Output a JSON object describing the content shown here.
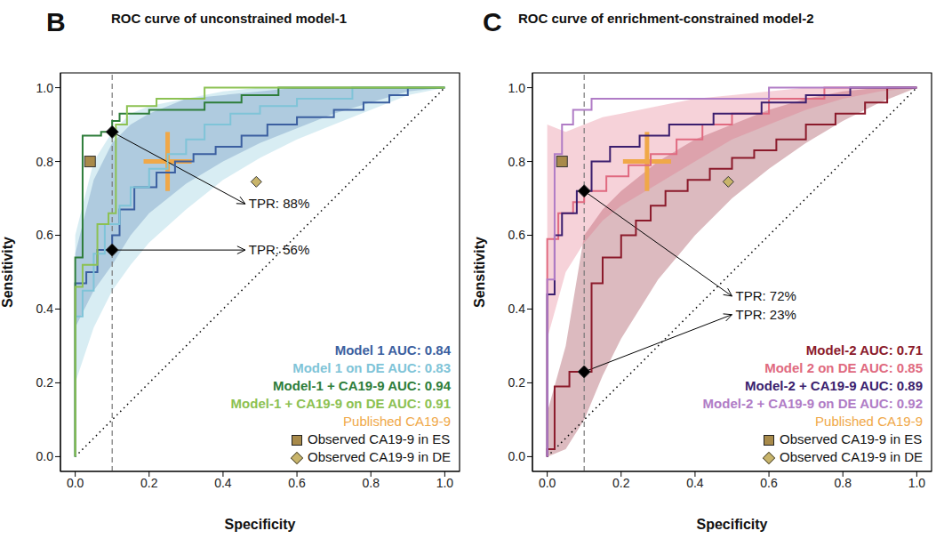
{
  "chart_data": [
    {
      "type": "line",
      "panel": "B",
      "title": "ROC curve of unconstrained model-1",
      "x_label": "Specificity",
      "y_label": "Sensitivity",
      "xlim": [
        -0.04,
        1.04
      ],
      "ylim": [
        -0.04,
        1.04
      ],
      "xticks": [
        {
          "value": 0,
          "label": "0.0"
        },
        {
          "value": 0.2,
          "label": "0.2"
        },
        {
          "value": 0.4,
          "label": "0.4"
        },
        {
          "value": 0.6,
          "label": "0.6"
        },
        {
          "value": 0.8,
          "label": "0.8"
        },
        {
          "value": 1,
          "label": "1.0"
        }
      ],
      "yticks": [
        {
          "value": 0,
          "label": "0.0"
        },
        {
          "value": 0.2,
          "label": "0.2"
        },
        {
          "value": 0.4,
          "label": "0.4"
        },
        {
          "value": 0.6,
          "label": "0.6"
        },
        {
          "value": 0.8,
          "label": "0.8"
        },
        {
          "value": 1,
          "label": "1.0"
        }
      ],
      "legend": "lower right",
      "band_x": [
        0,
        0.05,
        0.1,
        0.15,
        0.2,
        0.3,
        0.4,
        0.5,
        0.6,
        0.7,
        0.8,
        0.9,
        1.0
      ],
      "series": [
        {
          "name": "Model 1 AUC: 0.84",
          "color": "#3b5fa0",
          "x": [
            0,
            0,
            0.03,
            0.03,
            0.06,
            0.06,
            0.1,
            0.1,
            0.12,
            0.12,
            0.16,
            0.16,
            0.22,
            0.22,
            0.27,
            0.27,
            0.32,
            0.32,
            0.38,
            0.38,
            0.45,
            0.45,
            0.52,
            0.52,
            0.6,
            0.6,
            0.7,
            0.7,
            0.78,
            0.78,
            0.85,
            0.85,
            0.9,
            0.9,
            1
          ],
          "y": [
            0,
            0.47,
            0.47,
            0.5,
            0.5,
            0.56,
            0.56,
            0.6,
            0.6,
            0.67,
            0.67,
            0.73,
            0.73,
            0.77,
            0.77,
            0.8,
            0.8,
            0.82,
            0.82,
            0.84,
            0.84,
            0.87,
            0.87,
            0.9,
            0.9,
            0.92,
            0.92,
            0.94,
            0.94,
            0.96,
            0.96,
            0.98,
            0.98,
            1.0,
            1.0
          ],
          "band_lower": [
            0.35,
            0.45,
            0.52,
            0.6,
            0.66,
            0.74,
            0.8,
            0.85,
            0.89,
            0.93,
            0.96,
            0.99,
            1.0
          ],
          "band_upper": [
            0.55,
            0.75,
            0.85,
            0.9,
            0.93,
            0.97,
            0.98,
            0.99,
            1.0,
            1.0,
            1.0,
            1.0,
            1.0
          ]
        },
        {
          "name": "Model 1 on DE AUC: 0.83",
          "color": "#7fc4d8",
          "x": [
            0,
            0,
            0.02,
            0.02,
            0.05,
            0.05,
            0.08,
            0.08,
            0.12,
            0.12,
            0.15,
            0.15,
            0.2,
            0.2,
            0.25,
            0.25,
            0.3,
            0.3,
            0.35,
            0.35,
            0.42,
            0.42,
            0.5,
            0.5,
            0.6,
            0.6,
            0.75,
            0.75,
            1
          ],
          "y": [
            0,
            0.38,
            0.38,
            0.45,
            0.45,
            0.55,
            0.55,
            0.63,
            0.63,
            0.68,
            0.68,
            0.73,
            0.73,
            0.78,
            0.78,
            0.82,
            0.82,
            0.86,
            0.86,
            0.9,
            0.9,
            0.93,
            0.93,
            0.95,
            0.95,
            0.97,
            0.97,
            1.0,
            1.0
          ],
          "band_lower": [
            0.2,
            0.35,
            0.45,
            0.52,
            0.58,
            0.67,
            0.75,
            0.81,
            0.86,
            0.9,
            0.94,
            0.98,
            1.0
          ],
          "band_upper": [
            0.6,
            0.8,
            0.88,
            0.93,
            0.95,
            0.97,
            0.99,
            1.0,
            1.0,
            1.0,
            1.0,
            1.0,
            1.0
          ]
        },
        {
          "name": "Model-1 + CA19-9 AUC: 0.94",
          "color": "#2e7d3a",
          "x": [
            0,
            0,
            0.02,
            0.02,
            0.07,
            0.07,
            0.1,
            0.1,
            0.12,
            0.12,
            0.2,
            0.2,
            0.35,
            0.35,
            0.45,
            0.45,
            0.55,
            0.55,
            1
          ],
          "y": [
            0,
            0.54,
            0.54,
            0.87,
            0.87,
            0.88,
            0.88,
            0.91,
            0.91,
            0.93,
            0.93,
            0.94,
            0.94,
            0.96,
            0.96,
            0.98,
            0.98,
            1.0,
            1.0
          ]
        },
        {
          "name": "Model-1 + CA19-9 on DE AUC: 0.91",
          "color": "#8cc152",
          "x": [
            0,
            0,
            0.02,
            0.02,
            0.06,
            0.06,
            0.09,
            0.09,
            0.11,
            0.11,
            0.14,
            0.14,
            0.22,
            0.22,
            0.35,
            0.35,
            1
          ],
          "y": [
            0,
            0.46,
            0.46,
            0.52,
            0.52,
            0.63,
            0.63,
            0.66,
            0.66,
            0.9,
            0.9,
            0.95,
            0.95,
            0.97,
            0.97,
            1.0,
            1.0
          ]
        }
      ],
      "published": {
        "name": "Published CA19-9",
        "color": "#f0a848",
        "marker": "cross",
        "x": 0.25,
        "y": 0.8,
        "x_error": 0.065,
        "y_error": 0.08
      },
      "points": [
        {
          "name": "Observed CA19-9 in ES",
          "color": "#a88a4a",
          "marker": "square",
          "x": 0.04,
          "y": 0.8
        },
        {
          "name": "Observed CA19-9 in DE",
          "color": "#c8b46a",
          "marker": "diamond",
          "x": 0.49,
          "y": 0.745
        }
      ],
      "annotations": [
        {
          "text": "TPR: 88%",
          "x": 0.1,
          "y": 0.88,
          "label_at": [
            0.46,
            0.685
          ]
        },
        {
          "text": "TPR: 56%",
          "x": 0.1,
          "y": 0.56,
          "label_at": [
            0.46,
            0.56
          ]
        }
      ],
      "threshold": {
        "x": 0.1,
        "line_style": "dashed"
      },
      "diagonal": {
        "x": [
          0,
          1
        ],
        "y": [
          0,
          1
        ],
        "line_style": "dotted"
      }
    },
    {
      "type": "line",
      "panel": "C",
      "title": "ROC curve of enrichment-constrained model-2",
      "x_label": "Specificity",
      "y_label": "Sensitivity",
      "xlim": [
        -0.04,
        1.04
      ],
      "ylim": [
        -0.04,
        1.04
      ],
      "xticks": [
        {
          "value": 0,
          "label": "0.0"
        },
        {
          "value": 0.2,
          "label": "0.2"
        },
        {
          "value": 0.4,
          "label": "0.4"
        },
        {
          "value": 0.6,
          "label": "0.6"
        },
        {
          "value": 0.8,
          "label": "0.8"
        },
        {
          "value": 1,
          "label": "1.0"
        }
      ],
      "yticks": [
        {
          "value": 0,
          "label": "0.0"
        },
        {
          "value": 0.2,
          "label": "0.2"
        },
        {
          "value": 0.4,
          "label": "0.4"
        },
        {
          "value": 0.6,
          "label": "0.6"
        },
        {
          "value": 0.8,
          "label": "0.8"
        },
        {
          "value": 1,
          "label": "1.0"
        }
      ],
      "legend": "lower right",
      "band_x": [
        0,
        0.05,
        0.1,
        0.15,
        0.2,
        0.3,
        0.4,
        0.5,
        0.6,
        0.7,
        0.8,
        0.9,
        1.0
      ],
      "series": [
        {
          "name": "Model-2 AUC: 0.71",
          "color": "#8b1a2b",
          "x": [
            0,
            0,
            0.02,
            0.02,
            0.06,
            0.06,
            0.12,
            0.12,
            0.15,
            0.15,
            0.2,
            0.2,
            0.24,
            0.24,
            0.28,
            0.28,
            0.32,
            0.32,
            0.38,
            0.38,
            0.44,
            0.44,
            0.5,
            0.5,
            0.56,
            0.56,
            0.62,
            0.62,
            0.7,
            0.7,
            0.78,
            0.78,
            0.86,
            0.86,
            0.92,
            0.92,
            1
          ],
          "y": [
            0,
            0.02,
            0.02,
            0.19,
            0.19,
            0.23,
            0.23,
            0.47,
            0.47,
            0.54,
            0.54,
            0.6,
            0.6,
            0.64,
            0.64,
            0.68,
            0.68,
            0.72,
            0.72,
            0.75,
            0.75,
            0.78,
            0.78,
            0.81,
            0.81,
            0.83,
            0.83,
            0.86,
            0.86,
            0.9,
            0.9,
            0.93,
            0.93,
            0.96,
            0.96,
            1.0,
            1.0
          ],
          "band_lower": [
            0.0,
            0.02,
            0.1,
            0.22,
            0.32,
            0.48,
            0.6,
            0.7,
            0.78,
            0.85,
            0.91,
            0.96,
            1.0
          ],
          "band_upper": [
            0.12,
            0.3,
            0.6,
            0.67,
            0.72,
            0.8,
            0.86,
            0.9,
            0.94,
            0.97,
            0.99,
            1.0,
            1.0
          ]
        },
        {
          "name": "Model 2 on DE AUC: 0.85",
          "color": "#e06a80",
          "x": [
            0,
            0,
            0.03,
            0.03,
            0.07,
            0.07,
            0.1,
            0.1,
            0.16,
            0.16,
            0.22,
            0.22,
            0.28,
            0.28,
            0.35,
            0.35,
            0.42,
            0.42,
            0.5,
            0.5,
            0.6,
            0.6,
            0.75,
            0.75,
            1
          ],
          "y": [
            0,
            0.59,
            0.59,
            0.66,
            0.66,
            0.69,
            0.69,
            0.72,
            0.72,
            0.76,
            0.76,
            0.79,
            0.79,
            0.82,
            0.82,
            0.86,
            0.86,
            0.9,
            0.9,
            0.93,
            0.93,
            0.97,
            0.97,
            1.0,
            1.0
          ],
          "band_lower": [
            0.32,
            0.5,
            0.58,
            0.64,
            0.68,
            0.74,
            0.8,
            0.86,
            0.9,
            0.94,
            0.97,
            0.99,
            1.0
          ],
          "band_upper": [
            0.9,
            0.88,
            0.9,
            0.92,
            0.93,
            0.95,
            0.97,
            0.98,
            0.99,
            1.0,
            1.0,
            1.0,
            1.0
          ]
        },
        {
          "name": "Model-2 + CA19-9 AUC: 0.89",
          "color": "#3b1e6e",
          "x": [
            0,
            0,
            0.02,
            0.02,
            0.04,
            0.04,
            0.08,
            0.08,
            0.12,
            0.12,
            0.17,
            0.17,
            0.25,
            0.25,
            0.33,
            0.33,
            0.45,
            0.45,
            0.58,
            0.58,
            0.7,
            0.7,
            0.82,
            0.82,
            1
          ],
          "y": [
            0,
            0.44,
            0.44,
            0.6,
            0.6,
            0.66,
            0.66,
            0.72,
            0.72,
            0.8,
            0.8,
            0.84,
            0.84,
            0.87,
            0.87,
            0.9,
            0.9,
            0.93,
            0.93,
            0.96,
            0.96,
            0.98,
            0.98,
            1.0,
            1.0
          ]
        },
        {
          "name": "Model-2 + CA19-9 on DE AUC: 0.92",
          "color": "#b07cc6",
          "x": [
            0,
            0,
            0.02,
            0.02,
            0.04,
            0.04,
            0.07,
            0.07,
            0.12,
            0.12,
            0.6,
            0.6,
            1
          ],
          "y": [
            0,
            0.48,
            0.48,
            0.82,
            0.82,
            0.9,
            0.9,
            0.94,
            0.94,
            0.97,
            0.97,
            1.0,
            1.0
          ]
        }
      ],
      "published": {
        "name": "Published CA19-9",
        "color": "#f0a848",
        "marker": "cross",
        "x": 0.27,
        "y": 0.8,
        "x_error": 0.065,
        "y_error": 0.08
      },
      "points": [
        {
          "name": "Observed CA19-9 in ES",
          "color": "#a88a4a",
          "marker": "square",
          "x": 0.04,
          "y": 0.8
        },
        {
          "name": "Observed CA19-9 in DE",
          "color": "#c8b46a",
          "marker": "diamond",
          "x": 0.49,
          "y": 0.745
        }
      ],
      "annotations": [
        {
          "text": "TPR: 72%",
          "x": 0.1,
          "y": 0.72,
          "label_at": [
            0.5,
            0.435
          ]
        },
        {
          "text": "TPR: 23%",
          "x": 0.1,
          "y": 0.23,
          "label_at": [
            0.5,
            0.385
          ]
        }
      ],
      "threshold": {
        "x": 0.1,
        "line_style": "dashed"
      },
      "diagonal": {
        "x": [
          0,
          1
        ],
        "y": [
          0,
          1
        ],
        "line_style": "dotted"
      }
    }
  ]
}
